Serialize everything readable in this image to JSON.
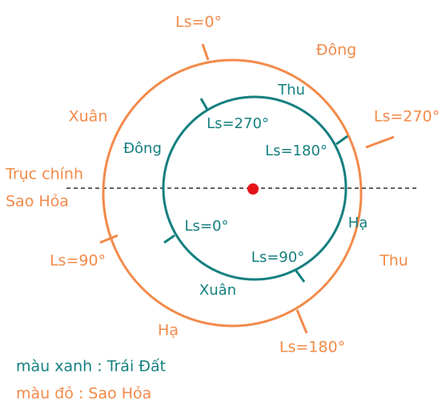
{
  "mars": {
    "axis_label": [
      "Trục chính",
      "Sao Hỏa"
    ],
    "ls_labels": [
      "Ls=0°",
      "Ls=270°",
      "Ls=180°",
      "Ls=90°"
    ],
    "season_labels": [
      "Đông",
      "Xuân",
      "Thu",
      "Hạ"
    ]
  },
  "earth": {
    "ls_labels": [
      "Ls=270°",
      "Ls=180°",
      "Ls=0°",
      "Ls=90°"
    ],
    "season_labels": [
      "Thu",
      "Đông",
      "Hạ",
      "Xuân"
    ]
  },
  "legend": [
    "màu xanh : Trái Đất",
    "màu đỏ : Sao Hỏa"
  ]
}
